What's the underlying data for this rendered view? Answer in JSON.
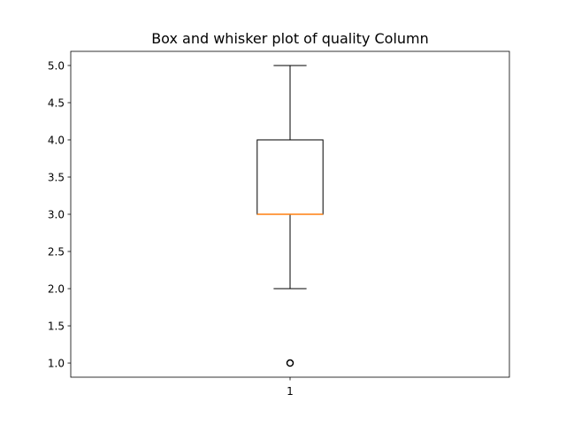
{
  "chart_data": {
    "type": "box",
    "title": "Box and whisker plot of quality Column",
    "xlabel": "",
    "ylabel": "",
    "categories": [
      "1"
    ],
    "boxes": [
      {
        "category": "1",
        "whisker_low": 2.0,
        "q1": 3.0,
        "median": 3.0,
        "q3": 4.0,
        "whisker_high": 5.0,
        "outliers": [
          1.0
        ]
      }
    ],
    "ylim": [
      0.81,
      5.19
    ],
    "y_ticks": [
      "1.0",
      "1.5",
      "2.0",
      "2.5",
      "3.0",
      "3.5",
      "4.0",
      "4.5",
      "5.0"
    ],
    "grid": false,
    "legend": "none",
    "colors": {
      "box": "#000000",
      "median": "#ff7f0e",
      "whisker": "#000000",
      "outlier": "#000000",
      "background": "#ffffff"
    }
  }
}
